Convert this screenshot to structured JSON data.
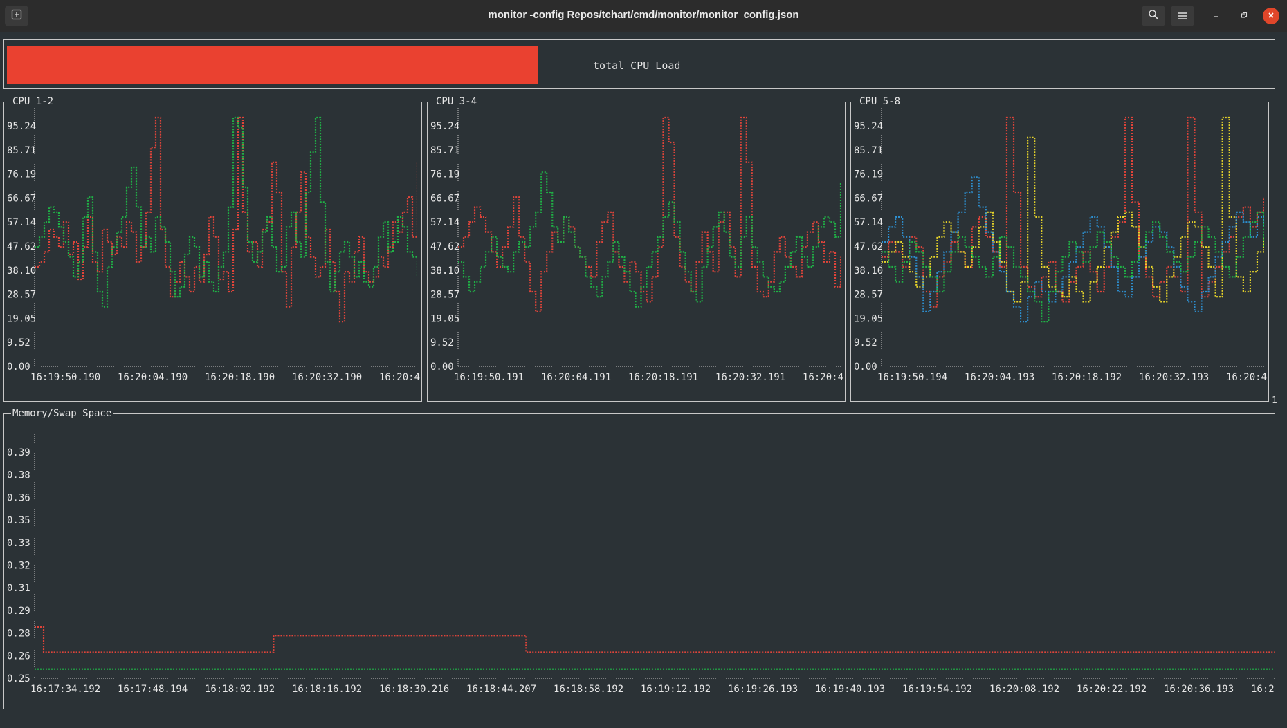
{
  "window": {
    "title": "monitor -config Repos/tchart/cmd/monitor/monitor_config.json"
  },
  "icons": {
    "new_tab": "new-tab-icon",
    "search": "search-icon",
    "menu": "hamburger-menu-icon",
    "minimize": "minimize-icon",
    "restore": "restore-icon",
    "close": "close-icon"
  },
  "colors": {
    "gauge": "#ea4130",
    "red": "#e0443a",
    "green": "#1fb346",
    "yellow": "#e8d52a",
    "blue": "#2d8fd0"
  },
  "gauge": {
    "label": "total CPU Load",
    "value_percent": 50
  },
  "right_edge_marker": "1",
  "chart_data": [
    {
      "type": "line",
      "title": "CPU 1-2",
      "y_ticks": [
        "95.24",
        "85.71",
        "76.19",
        "66.67",
        "57.14",
        "47.62",
        "38.10",
        "28.57",
        "19.05",
        "9.52",
        "0.00"
      ],
      "x_ticks": [
        "16:19:50.190",
        "16:20:04.190",
        "16:20:18.190",
        "16:20:32.190",
        "16:20:4"
      ],
      "ylim": [
        0,
        100
      ],
      "series": [
        {
          "color": "red",
          "values": [
            40,
            42,
            46,
            55,
            52,
            48,
            58,
            45,
            50,
            35,
            48,
            60,
            42,
            38,
            55,
            50,
            45,
            52,
            48,
            58,
            54,
            42,
            48,
            62,
            88,
            100,
            55,
            40,
            28,
            34,
            42,
            36,
            30,
            40,
            34,
            45,
            60,
            52,
            35,
            38,
            30,
            55,
            100,
            62,
            46,
            50,
            40,
            55,
            58,
            82,
            70,
            38,
            24,
            48,
            62,
            78,
            52,
            44,
            36,
            40,
            55,
            42,
            30,
            18,
            38,
            34,
            46,
            52,
            38,
            34,
            36,
            44,
            40,
            48,
            58,
            54,
            62,
            68,
            52,
            82
          ]
        },
        {
          "color": "green",
          "values": [
            48,
            52,
            58,
            64,
            62,
            56,
            50,
            44,
            36,
            42,
            60,
            68,
            46,
            30,
            24,
            40,
            48,
            54,
            60,
            72,
            80,
            64,
            48,
            52,
            46,
            60,
            56,
            50,
            38,
            28,
            32,
            45,
            52,
            48,
            36,
            42,
            34,
            30,
            40,
            46,
            64,
            100,
            96,
            72,
            50,
            42,
            46,
            54,
            60,
            48,
            38,
            40,
            56,
            62,
            50,
            44,
            70,
            86,
            100,
            66,
            42,
            30,
            38,
            46,
            50,
            44,
            36,
            42,
            34,
            32,
            40,
            52,
            58,
            46,
            50,
            60,
            56,
            46,
            44,
            36
          ]
        }
      ]
    },
    {
      "type": "line",
      "title": "CPU 3-4",
      "y_ticks": [
        "95.24",
        "85.71",
        "76.19",
        "66.67",
        "57.14",
        "47.62",
        "38.10",
        "28.57",
        "19.05",
        "9.52",
        "0.00"
      ],
      "x_ticks": [
        "16:19:50.191",
        "16:20:04.191",
        "16:20:18.191",
        "16:20:32.191",
        "16:20:4"
      ],
      "ylim": [
        0,
        100
      ],
      "series": [
        {
          "color": "red",
          "values": [
            48,
            52,
            58,
            64,
            60,
            54,
            46,
            40,
            48,
            56,
            68,
            52,
            42,
            30,
            22,
            38,
            46,
            54,
            50,
            60,
            56,
            48,
            44,
            40,
            36,
            50,
            58,
            62,
            46,
            40,
            34,
            42,
            38,
            30,
            26,
            36,
            48,
            100,
            90,
            52,
            40,
            34,
            30,
            42,
            54,
            46,
            38,
            58,
            62,
            48,
            36,
            100,
            82,
            40,
            30,
            28,
            34,
            46,
            52,
            44,
            40,
            36,
            48,
            54,
            58,
            50,
            42,
            46,
            32,
            44
          ]
        },
        {
          "color": "green",
          "values": [
            42,
            36,
            30,
            34,
            40,
            46,
            52,
            44,
            40,
            38,
            46,
            50,
            48,
            56,
            62,
            78,
            70,
            56,
            50,
            60,
            54,
            48,
            44,
            36,
            32,
            28,
            36,
            42,
            50,
            44,
            38,
            30,
            24,
            32,
            40,
            46,
            52,
            60,
            66,
            58,
            46,
            38,
            30,
            26,
            40,
            48,
            56,
            62,
            54,
            44,
            40,
            52,
            60,
            48,
            42,
            36,
            32,
            30,
            34,
            40,
            46,
            52,
            44,
            40,
            48,
            56,
            60,
            58,
            52,
            74
          ]
        }
      ]
    },
    {
      "type": "line",
      "title": "CPU 5-8",
      "y_ticks": [
        "95.24",
        "85.71",
        "76.19",
        "66.67",
        "57.14",
        "47.62",
        "38.10",
        "28.57",
        "19.05",
        "9.52",
        "0.00"
      ],
      "x_ticks": [
        "16:19:50.194",
        "16:20:04.193",
        "16:20:18.192",
        "16:20:32.193",
        "16:20:4"
      ],
      "ylim": [
        0,
        100
      ],
      "series": [
        {
          "color": "red",
          "values": [
            44,
            50,
            46,
            40,
            52,
            48,
            30,
            24,
            36,
            42,
            50,
            46,
            40,
            56,
            60,
            52,
            46,
            40,
            100,
            70,
            40,
            32,
            28,
            36,
            42,
            30,
            26,
            34,
            40,
            46,
            38,
            30,
            40,
            52,
            58,
            100,
            66,
            44,
            36,
            28,
            34,
            40,
            36,
            30,
            100,
            62,
            28,
            34,
            40,
            46,
            52,
            60,
            64,
            56,
            62,
            68
          ]
        },
        {
          "color": "yellow",
          "values": [
            42,
            46,
            50,
            44,
            38,
            32,
            36,
            44,
            52,
            58,
            54,
            46,
            40,
            48,
            56,
            62,
            50,
            42,
            30,
            26,
            34,
            92,
            60,
            40,
            32,
            30,
            28,
            36,
            30,
            26,
            34,
            40,
            48,
            54,
            60,
            62,
            56,
            48,
            40,
            32,
            26,
            36,
            44,
            52,
            58,
            56,
            48,
            40,
            28,
            100,
            60,
            36,
            30,
            38,
            46,
            52
          ]
        },
        {
          "color": "blue",
          "values": [
            50,
            56,
            60,
            52,
            44,
            36,
            22,
            30,
            38,
            46,
            54,
            62,
            70,
            76,
            64,
            54,
            46,
            38,
            30,
            24,
            18,
            28,
            34,
            30,
            26,
            30,
            36,
            42,
            48,
            54,
            60,
            56,
            48,
            40,
            30,
            28,
            36,
            44,
            50,
            56,
            54,
            48,
            40,
            32,
            26,
            22,
            30,
            36,
            44,
            50,
            56,
            62,
            58,
            52,
            60,
            56
          ]
        },
        {
          "color": "green",
          "values": [
            46,
            40,
            34,
            42,
            50,
            46,
            40,
            36,
            30,
            38,
            46,
            52,
            48,
            44,
            40,
            36,
            44,
            52,
            48,
            40,
            36,
            30,
            26,
            18,
            30,
            38,
            44,
            50,
            46,
            42,
            48,
            54,
            50,
            44,
            40,
            36,
            42,
            48,
            54,
            58,
            52,
            46,
            42,
            38,
            44,
            50,
            56,
            52,
            46,
            40,
            36,
            44,
            52,
            58,
            62,
            48
          ]
        }
      ]
    },
    {
      "type": "line",
      "title": "Memory/Swap Space",
      "y_ticks": [
        "0.39",
        "0.38",
        "0.36",
        "0.35",
        "0.33",
        "0.32",
        "0.31",
        "0.29",
        "0.28",
        "0.26",
        "0.25"
      ],
      "x_ticks": [
        "16:17:34.192",
        "16:17:48.194",
        "16:18:02.192",
        "16:18:16.192",
        "16:18:30.216",
        "16:18:44.207",
        "16:18:58.192",
        "16:19:12.192",
        "16:19:26.193",
        "16:19:40.193",
        "16:19:54.192",
        "16:20:08.192",
        "16:20:22.192",
        "16:20:36.193",
        "16:2"
      ],
      "ylim": [
        0.25,
        0.39
      ],
      "series": [
        {
          "color": "red",
          "values": [
            0.2805,
            0.2805,
            0.2655,
            0.2655,
            0.2655,
            0.2655,
            0.2655,
            0.2655,
            0.2655,
            0.2655,
            0.2655,
            0.2655,
            0.2655,
            0.2655,
            0.2655,
            0.2655,
            0.2655,
            0.2655,
            0.2655,
            0.2655,
            0.2655,
            0.2655,
            0.2655,
            0.2655,
            0.2655,
            0.2655,
            0.2655,
            0.2655,
            0.2655,
            0.2655,
            0.2655,
            0.2655,
            0.2655,
            0.2655,
            0.2655,
            0.2655,
            0.2655,
            0.2655,
            0.2655,
            0.2655,
            0.2655,
            0.2655,
            0.2655,
            0.2655,
            0.2655,
            0.2655,
            0.2655,
            0.2655,
            0.2655,
            0.2655,
            0.2655,
            0.2655,
            0.2655,
            0.2755,
            0.2755,
            0.2755,
            0.2755,
            0.2755,
            0.2755,
            0.2755,
            0.2755,
            0.2755,
            0.2755,
            0.2755,
            0.2755,
            0.2755,
            0.2755,
            0.2755,
            0.2755,
            0.2755,
            0.2755,
            0.2755,
            0.2755,
            0.2755,
            0.2755,
            0.2755,
            0.2755,
            0.2755,
            0.2755,
            0.2755,
            0.2755,
            0.2755,
            0.2755,
            0.2755,
            0.2755,
            0.2755,
            0.2755,
            0.2755,
            0.2755,
            0.2755,
            0.2755,
            0.2755,
            0.2755,
            0.2755,
            0.2755,
            0.2755,
            0.2755,
            0.2755,
            0.2755,
            0.2755,
            0.2755,
            0.2755,
            0.2755,
            0.2755,
            0.2755,
            0.2755,
            0.2755,
            0.2755,
            0.2755,
            0.2655,
            0.2655,
            0.2655,
            0.2655,
            0.2655,
            0.2655,
            0.2655,
            0.2655,
            0.2655,
            0.2655,
            0.2655,
            0.2655,
            0.2655,
            0.2655,
            0.2655,
            0.2655,
            0.2655,
            0.2655,
            0.2655,
            0.2655,
            0.2655,
            0.2655,
            0.2655,
            0.2655,
            0.2655,
            0.2655,
            0.2655,
            0.2655,
            0.2655,
            0.2655,
            0.2655,
            0.2655,
            0.2655,
            0.2655,
            0.2655,
            0.2655,
            0.2655,
            0.2655,
            0.2655,
            0.2655,
            0.2655,
            0.2655,
            0.2655,
            0.2655,
            0.2655,
            0.2655,
            0.2655,
            0.2655,
            0.2655,
            0.2655,
            0.2655,
            0.2655,
            0.2655,
            0.2655,
            0.2655,
            0.2655,
            0.2655,
            0.2655,
            0.2655,
            0.2655,
            0.2655,
            0.2655,
            0.2655,
            0.2655,
            0.2655,
            0.2655,
            0.2655,
            0.2655,
            0.2655,
            0.2655,
            0.2655,
            0.2655,
            0.2655,
            0.2655,
            0.2655,
            0.2655,
            0.2655,
            0.2655,
            0.2655,
            0.2655,
            0.2655,
            0.2655,
            0.2655,
            0.2655,
            0.2655,
            0.2655,
            0.2655,
            0.2655,
            0.2655,
            0.2655,
            0.2655,
            0.2655,
            0.2655,
            0.2655,
            0.2655,
            0.2655,
            0.2655,
            0.2655,
            0.2655,
            0.2655,
            0.2655,
            0.2655,
            0.2655,
            0.2655,
            0.2655,
            0.2655,
            0.2655,
            0.2655,
            0.2655,
            0.2655,
            0.2655,
            0.2655,
            0.2655,
            0.2655,
            0.2655,
            0.2655,
            0.2655,
            0.2655,
            0.2655,
            0.2655,
            0.2655,
            0.2655,
            0.2655,
            0.2655,
            0.2655,
            0.2655,
            0.2655,
            0.2655,
            0.2655,
            0.2655,
            0.2655,
            0.2655,
            0.2655,
            0.2655,
            0.2655,
            0.2655,
            0.2655,
            0.2655,
            0.2655,
            0.2655,
            0.2655,
            0.2655,
            0.2655,
            0.2655,
            0.2655,
            0.2655,
            0.2655,
            0.2655,
            0.2655,
            0.2655,
            0.2655,
            0.2655,
            0.2655,
            0.2655,
            0.2655,
            0.2655,
            0.2655,
            0.2655,
            0.2655,
            0.2655,
            0.2655,
            0.2655,
            0.2655,
            0.2655,
            0.2655,
            0.2655,
            0.2655
          ]
        },
        {
          "color": "green",
          "values": [
            0.2555,
            0.2555,
            0.2555,
            0.2555,
            0.2555,
            0.2555,
            0.2555,
            0.2555,
            0.2555,
            0.2555,
            0.2555,
            0.2555,
            0.2555,
            0.2555,
            0.2555,
            0.2555,
            0.2555,
            0.2555,
            0.2555,
            0.2555,
            0.2555,
            0.2555,
            0.2555,
            0.2555,
            0.2555,
            0.2555,
            0.2555,
            0.2555,
            0.2555,
            0.2555,
            0.2555,
            0.2555,
            0.2555,
            0.2555,
            0.2555,
            0.2555,
            0.2555,
            0.2555,
            0.2555,
            0.2555,
            0.2555,
            0.2555,
            0.2555,
            0.2555,
            0.2555,
            0.2555,
            0.2555,
            0.2555,
            0.2555,
            0.2555,
            0.2555,
            0.2555,
            0.2555,
            0.2555,
            0.2555,
            0.2555,
            0.2555,
            0.2555,
            0.2555,
            0.2555,
            0.2555,
            0.2555,
            0.2555,
            0.2555,
            0.2555,
            0.2555,
            0.2555,
            0.2555,
            0.2555,
            0.2555
          ]
        }
      ]
    }
  ]
}
